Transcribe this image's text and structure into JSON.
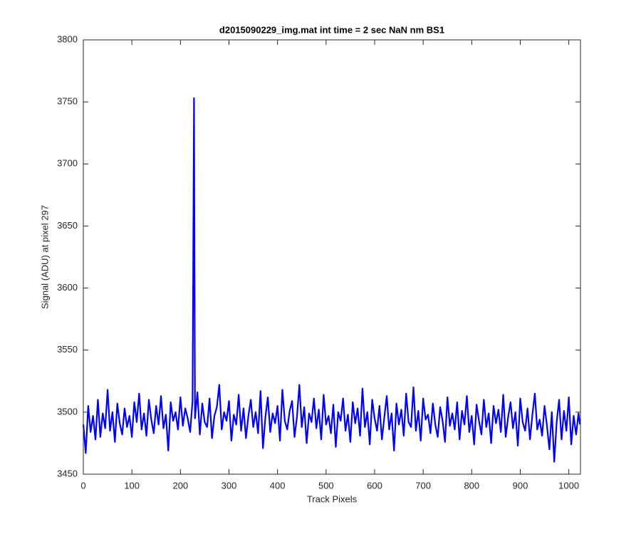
{
  "chart_data": {
    "type": "line",
    "title": "d2015090229_img.mat int time = 2 sec  NaN nm BS1",
    "xlabel": "Track Pixels",
    "ylabel": "Signal (ADU) at pixel 297",
    "color": "#0000ff",
    "xlim": [
      0,
      1024
    ],
    "ylim": [
      3450,
      3800
    ],
    "xticks": [
      0,
      100,
      200,
      300,
      400,
      500,
      600,
      700,
      800,
      900,
      1000
    ],
    "yticks": [
      3450,
      3500,
      3550,
      3600,
      3650,
      3700,
      3750,
      3800
    ],
    "x": [
      0,
      5,
      10,
      15,
      20,
      25,
      30,
      35,
      40,
      45,
      50,
      55,
      60,
      65,
      70,
      75,
      80,
      85,
      90,
      95,
      100,
      105,
      110,
      115,
      120,
      125,
      130,
      135,
      140,
      145,
      150,
      155,
      160,
      165,
      170,
      175,
      180,
      185,
      190,
      195,
      200,
      205,
      210,
      215,
      220,
      225,
      228,
      230,
      235,
      240,
      245,
      250,
      255,
      260,
      265,
      270,
      275,
      280,
      285,
      290,
      295,
      300,
      305,
      310,
      315,
      320,
      325,
      330,
      335,
      340,
      345,
      350,
      355,
      360,
      365,
      370,
      375,
      380,
      385,
      390,
      395,
      400,
      405,
      410,
      415,
      420,
      425,
      430,
      435,
      440,
      445,
      450,
      455,
      460,
      465,
      470,
      475,
      480,
      485,
      490,
      495,
      500,
      505,
      510,
      515,
      520,
      525,
      530,
      535,
      540,
      545,
      550,
      555,
      560,
      565,
      570,
      575,
      580,
      585,
      590,
      595,
      600,
      605,
      610,
      615,
      620,
      625,
      630,
      635,
      640,
      645,
      650,
      655,
      660,
      665,
      670,
      675,
      680,
      685,
      690,
      695,
      700,
      705,
      710,
      715,
      720,
      725,
      730,
      735,
      740,
      745,
      750,
      755,
      760,
      765,
      770,
      775,
      780,
      785,
      790,
      795,
      800,
      805,
      810,
      815,
      820,
      825,
      830,
      835,
      840,
      845,
      850,
      855,
      860,
      865,
      870,
      875,
      880,
      885,
      890,
      895,
      900,
      905,
      910,
      915,
      920,
      925,
      930,
      935,
      940,
      945,
      950,
      955,
      960,
      965,
      970,
      975,
      980,
      985,
      990,
      995,
      1000,
      1005,
      1010,
      1015,
      1020,
      1023
    ],
    "values": [
      3490,
      3467,
      3505,
      3484,
      3497,
      3478,
      3510,
      3480,
      3499,
      3487,
      3518,
      3485,
      3500,
      3476,
      3507,
      3491,
      3482,
      3503,
      3488,
      3497,
      3480,
      3508,
      3492,
      3515,
      3486,
      3499,
      3481,
      3510,
      3494,
      3483,
      3505,
      3490,
      3513,
      3487,
      3498,
      3469,
      3508,
      3493,
      3500,
      3486,
      3512,
      3489,
      3503,
      3495,
      3484,
      3509,
      3753,
      3495,
      3516,
      3482,
      3507,
      3492,
      3488,
      3511,
      3479,
      3497,
      3504,
      3522,
      3486,
      3500,
      3493,
      3509,
      3477,
      3498,
      3490,
      3514,
      3485,
      3503,
      3479,
      3497,
      3510,
      3488,
      3500,
      3483,
      3517,
      3471,
      3496,
      3512,
      3484,
      3499,
      3491,
      3505,
      3477,
      3518,
      3493,
      3486,
      3501,
      3509,
      3480,
      3496,
      3522,
      3488,
      3504,
      3475,
      3499,
      3492,
      3511,
      3487,
      3502,
      3478,
      3514,
      3490,
      3497,
      3483,
      3506,
      3472,
      3500,
      3493,
      3511,
      3485,
      3498,
      3476,
      3508,
      3491,
      3503,
      3481,
      3519,
      3488,
      3500,
      3474,
      3510,
      3495,
      3485,
      3505,
      3478,
      3496,
      3513,
      3486,
      3499,
      3469,
      3507,
      3490,
      3502,
      3481,
      3515,
      3492,
      3488,
      3520,
      3485,
      3501,
      3477,
      3511,
      3494,
      3498,
      3483,
      3507,
      3490,
      3480,
      3504,
      3493,
      3476,
      3512,
      3489,
      3499,
      3486,
      3508,
      3478,
      3501,
      3490,
      3513,
      3484,
      3497,
      3474,
      3506,
      3493,
      3482,
      3510,
      3488,
      3499,
      3475,
      3505,
      3491,
      3502,
      3484,
      3514,
      3480,
      3496,
      3508,
      3487,
      3500,
      3473,
      3511,
      3492,
      3485,
      3503,
      3478,
      3498,
      3515,
      3486,
      3494,
      3481,
      3505,
      3489,
      3470,
      3500,
      3460,
      3492,
      3510,
      3478,
      3501,
      3485,
      3512,
      3474,
      3497,
      3482,
      3499,
      3490
    ]
  }
}
